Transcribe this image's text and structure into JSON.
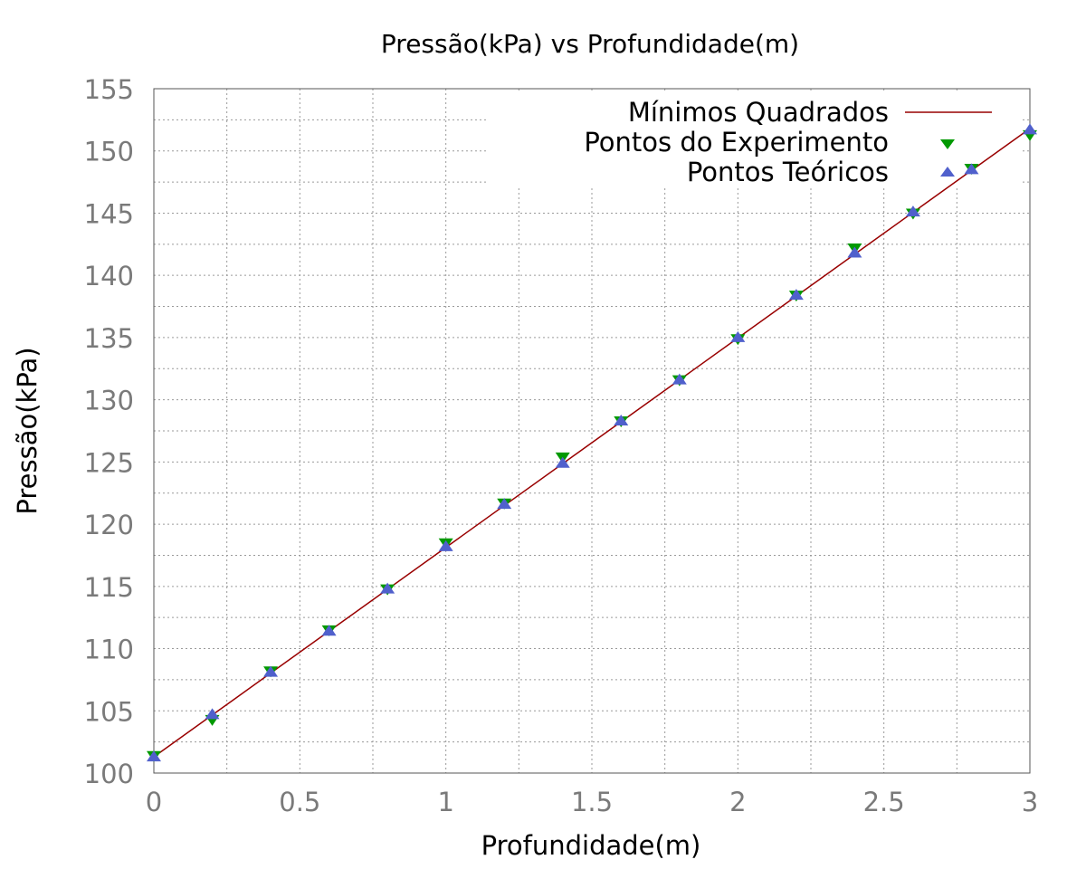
{
  "chart_data": {
    "type": "scatter",
    "title": "Pressão(kPa) vs Profundidade(m)",
    "xlabel": "Profundidade(m)",
    "ylabel": "Pressão(kPa)",
    "xlim": [
      0,
      3
    ],
    "ylim": [
      100,
      155
    ],
    "xticks": [
      "0",
      "0.5",
      "1",
      "1.5",
      "2",
      "2.5",
      "3"
    ],
    "yticks": [
      "100",
      "105",
      "110",
      "115",
      "120",
      "125",
      "130",
      "135",
      "140",
      "145",
      "150",
      "155"
    ],
    "grid": true,
    "legend_position": "top-right",
    "series": [
      {
        "name": "Mínimos Quadrados",
        "kind": "line",
        "color": "#990000",
        "x": [
          0,
          3
        ],
        "y": [
          101.3,
          151.8
        ]
      },
      {
        "name": "Pontos do Experimento",
        "kind": "triangle-down",
        "color": "#009900",
        "x": [
          0,
          0.2,
          0.4,
          0.6,
          0.8,
          1.0,
          1.2,
          1.4,
          1.6,
          1.8,
          2.0,
          2.2,
          2.4,
          2.6,
          2.8,
          3.0
        ],
        "y": [
          101.4,
          104.3,
          108.2,
          111.5,
          114.8,
          118.5,
          121.7,
          125.4,
          128.3,
          131.6,
          134.9,
          138.4,
          142.2,
          145.0,
          148.6,
          151.3
        ]
      },
      {
        "name": "Pontos Teóricos",
        "kind": "triangle-up",
        "color": "#5060cc",
        "x": [
          0,
          0.2,
          0.4,
          0.6,
          0.8,
          1.0,
          1.2,
          1.4,
          1.6,
          1.8,
          2.0,
          2.2,
          2.4,
          2.6,
          2.8,
          3.0
        ],
        "y": [
          101.3,
          104.7,
          108.1,
          111.4,
          114.8,
          118.2,
          121.6,
          124.9,
          128.3,
          131.6,
          135.0,
          138.4,
          141.8,
          145.1,
          148.5,
          151.7
        ]
      }
    ]
  }
}
